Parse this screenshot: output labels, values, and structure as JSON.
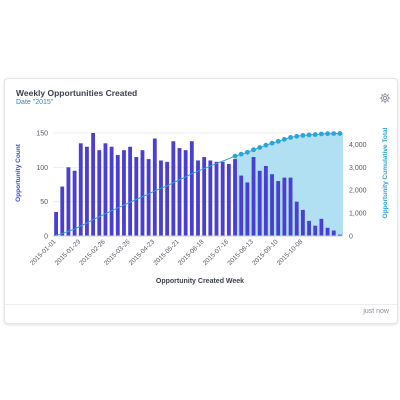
{
  "card": {
    "title": "Weekly Opportunities Created",
    "subtitle": "Date \"2015\"",
    "timestamp": "just now",
    "settings_icon": "gear-icon"
  },
  "colors": {
    "bar": "#4a3fd3",
    "line": "#2ea3d8",
    "area": "#a9ddf1",
    "axis_label_left": "#3d4ac7",
    "axis_label_right": "#2ea3d8"
  },
  "chart_data": {
    "type": "bar",
    "xlabel": "Opportunity Created Week",
    "ylabel": "Opportunity Count",
    "y2label": "Opportunity Cumulative Total",
    "ylim": [
      0,
      150
    ],
    "y2lim": [
      0,
      4500
    ],
    "yticks": [
      0,
      50,
      100,
      150
    ],
    "y2ticks": [
      "0",
      "1,000",
      "2,000",
      "3,000",
      "4,000"
    ],
    "xtick_labels": [
      "2015-01-01",
      "2015-01-29",
      "2015-02-26",
      "2015-03-26",
      "2015-04-23",
      "2015-05-21",
      "2015-06-18",
      "2015-07-16",
      "2015-08-13",
      "2015-09-10",
      "2015-10-08"
    ],
    "xtick_every": 4,
    "series": [
      {
        "name": "Opportunity Count",
        "type": "bar",
        "values": [
          35,
          72,
          100,
          95,
          135,
          130,
          150,
          125,
          135,
          130,
          118,
          125,
          130,
          115,
          125,
          112,
          142,
          110,
          108,
          138,
          128,
          125,
          138,
          110,
          115,
          110,
          108,
          108,
          105,
          112,
          88,
          78,
          115,
          95,
          102,
          90,
          80,
          85,
          85,
          50,
          38,
          22,
          15,
          25,
          12,
          8,
          2
        ]
      },
      {
        "name": "Opportunity Cumulative Total",
        "type": "area-line",
        "axis": "right",
        "values": [
          35,
          107,
          207,
          302,
          437,
          567,
          717,
          842,
          977,
          1107,
          1225,
          1350,
          1480,
          1595,
          1720,
          1832,
          1974,
          2084,
          2192,
          2330,
          2458,
          2583,
          2721,
          2831,
          2946,
          3056,
          3164,
          3272,
          3377,
          3489,
          3577,
          3655,
          3770,
          3865,
          3967,
          4057,
          4137,
          4222,
          4307,
          4357,
          4395,
          4417,
          4432,
          4457,
          4469,
          4477,
          4479
        ]
      }
    ],
    "highlight_start_index": 29
  }
}
